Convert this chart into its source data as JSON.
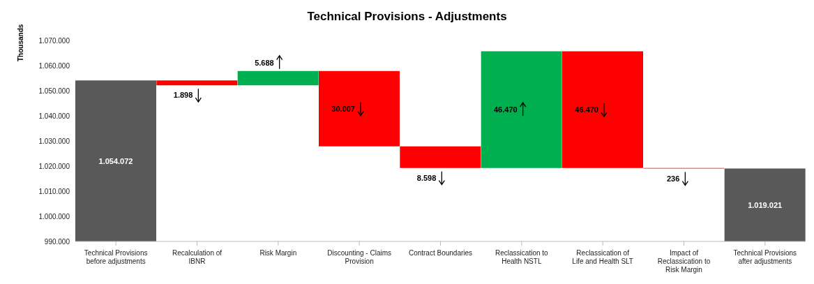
{
  "chart_data": {
    "type": "bar",
    "title": "Technical Provisions - Adjustments",
    "ylabel": "Thousands",
    "categories": [
      "Technical Provisions before adjustments",
      "Recalculation of IBNR",
      "Risk Margin",
      "Discounting - Claims Provision",
      "Contract Boundaries",
      "Reclassication to Health NSTL",
      "Reclassication of Life and Health SLT",
      "Impact of Reclassication to Risk Margin",
      "Technical Provisions after adjustments"
    ],
    "values": [
      1054072,
      -1898,
      5688,
      -30007,
      -8598,
      46470,
      -46470,
      -236,
      1019021
    ],
    "base": [
      null,
      1054072,
      1052174,
      1057862,
      1027855,
      1019257,
      1065727,
      1019257,
      null
    ],
    "colors": [
      "#595959",
      "#ff0000",
      "#00b050",
      "#ff0000",
      "#ff0000",
      "#00b050",
      "#ff0000",
      "#ff0000",
      "#595959"
    ],
    "value_labels": [
      "1.054.072",
      "1.898",
      "5.688",
      "30.007",
      "8.598",
      "46.470",
      "46.470",
      "236",
      "1.019.021"
    ],
    "ylim": [
      990000,
      1070000
    ],
    "yticks": [
      {
        "value": 990000,
        "label": "990.000"
      },
      {
        "value": 1000000,
        "label": "1.000.000"
      },
      {
        "value": 1010000,
        "label": "1.010.000"
      },
      {
        "value": 1020000,
        "label": "1.020.000"
      },
      {
        "value": 1030000,
        "label": "1.030.000"
      },
      {
        "value": 1040000,
        "label": "1.040.000"
      },
      {
        "value": 1050000,
        "label": "1.050.000"
      },
      {
        "value": 1060000,
        "label": "1.060.000"
      },
      {
        "value": 1070000,
        "label": "1.070.000"
      }
    ],
    "grid": false,
    "legend": false
  }
}
